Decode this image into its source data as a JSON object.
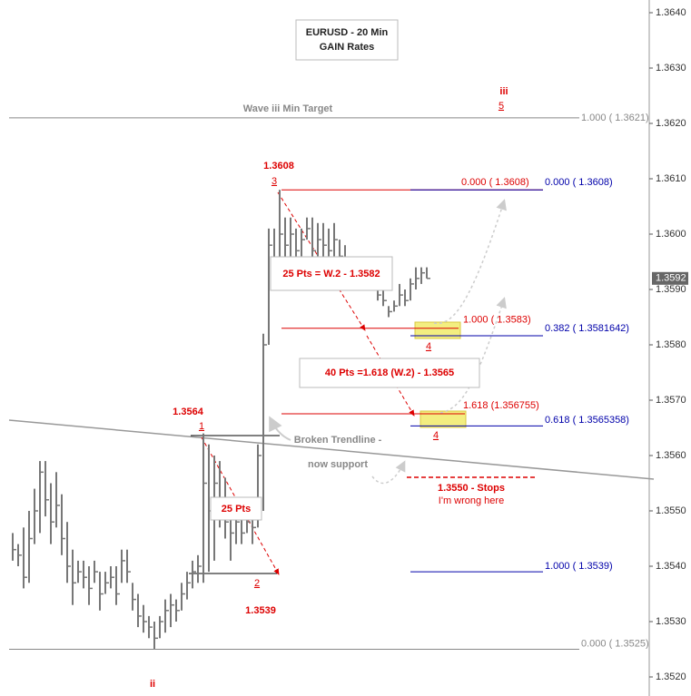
{
  "chart_data": {
    "type": "ohlc",
    "color": "#777777",
    "high": [
      1.3546,
      1.3544,
      1.3547,
      1.355,
      1.3554,
      1.3559,
      1.3559,
      1.3555,
      1.3557,
      1.3553,
      1.3548,
      1.3543,
      1.3541,
      1.3541,
      1.354,
      1.3541,
      1.3539,
      1.3539,
      1.354,
      1.354,
      1.3543,
      1.3543,
      1.3537,
      1.3535,
      1.3533,
      1.3531,
      1.353,
      1.3531,
      1.3534,
      1.3535,
      1.3534,
      1.3537,
      1.3539,
      1.3541,
      1.3542,
      1.3564,
      1.3562,
      1.356,
      1.3559,
      1.3556,
      1.3551,
      1.3551,
      1.3549,
      1.3551,
      1.3549,
      1.3562,
      1.3582,
      1.3601,
      1.3601,
      1.3608,
      1.3603,
      1.3603,
      1.3601,
      1.3601,
      1.3603,
      1.3603,
      1.3602,
      1.3602,
      1.3601,
      1.3602,
      1.3599,
      1.3598,
      null,
      null,
      null,
      null,
      null,
      1.3591,
      1.359,
      1.3587,
      1.3588,
      1.3591,
      1.359,
      1.3592,
      1.3594,
      1.3594,
      1.3594
    ],
    "low": [
      1.3541,
      1.354,
      1.3536,
      1.3537,
      1.3544,
      1.3546,
      1.3549,
      1.3544,
      1.3547,
      1.3542,
      1.3537,
      1.3533,
      1.3537,
      1.3536,
      1.3533,
      1.3537,
      1.3532,
      1.3535,
      1.3536,
      1.3533,
      1.3537,
      1.3537,
      1.3532,
      1.3529,
      1.3528,
      1.3527,
      1.3525,
      1.3527,
      1.3528,
      1.3529,
      1.353,
      1.3532,
      1.3534,
      1.3536,
      1.3537,
      1.3537,
      1.3539,
      1.3541,
      1.3547,
      1.3545,
      1.3541,
      1.3544,
      1.3544,
      1.3546,
      1.3544,
      1.3547,
      1.355,
      1.358,
      1.359,
      1.359,
      1.3595,
      1.3596,
      1.3595,
      1.3596,
      1.3599,
      1.3595,
      1.3596,
      1.3595,
      1.3596,
      1.3596,
      1.3594,
      1.3593,
      null,
      null,
      null,
      null,
      null,
      1.3588,
      1.3587,
      1.3585,
      1.3586,
      1.3587,
      1.3587,
      1.3588,
      1.359,
      1.3591,
      1.3592
    ],
    "close": [
      1.3543,
      1.3542,
      1.3538,
      1.3545,
      1.355,
      1.3557,
      1.3552,
      1.3548,
      1.3551,
      1.3545,
      1.354,
      1.3537,
      1.3539,
      1.3538,
      1.3536,
      1.3539,
      1.3535,
      1.3537,
      1.3538,
      1.3535,
      1.3541,
      1.3539,
      1.3534,
      1.3531,
      1.353,
      1.3529,
      1.3527,
      1.353,
      1.3532,
      1.3533,
      1.3532,
      1.3535,
      1.3537,
      1.3539,
      1.354,
      1.3555,
      1.355,
      1.3555,
      1.3552,
      1.3548,
      1.3546,
      1.3548,
      1.3546,
      1.3548,
      1.3547,
      1.356,
      1.358,
      1.3598,
      1.3595,
      1.36,
      1.3598,
      1.36,
      1.3597,
      1.3599,
      1.3601,
      1.3597,
      1.3599,
      1.3598,
      1.3597,
      1.3599,
      1.3596,
      1.3595,
      null,
      null,
      null,
      null,
      null,
      1.3589,
      1.3588,
      1.3586,
      1.3587,
      1.3589,
      1.3588,
      1.3591,
      1.3592,
      1.3593,
      1.3592
    ],
    "ylim": [
      1.352,
      1.364
    ],
    "yticks": [
      {
        "value": 1.352,
        "label": "1.3520"
      },
      {
        "value": 1.353,
        "label": "1.3530"
      },
      {
        "value": 1.354,
        "label": "1.3540"
      },
      {
        "value": 1.355,
        "label": "1.3550"
      },
      {
        "value": 1.356,
        "label": "1.3560"
      },
      {
        "value": 1.357,
        "label": "1.3570"
      },
      {
        "value": 1.358,
        "label": "1.3580"
      },
      {
        "value": 1.359,
        "label": "1.3590"
      },
      {
        "value": 1.36,
        "label": "1.3600"
      },
      {
        "value": 1.361,
        "label": "1.3610"
      },
      {
        "value": 1.362,
        "label": "1.3620"
      },
      {
        "value": 1.363,
        "label": "1.3630"
      },
      {
        "value": 1.364,
        "label": "1.3640"
      }
    ],
    "last_price": {
      "value": 1.3592,
      "label": "1.3592"
    },
    "levels": [
      {
        "value": 1.3621,
        "label": "1.000 ( 1.3621)",
        "color": "#888888"
      },
      {
        "value": 1.3608,
        "label": "0.000 ( 1.3608)",
        "color": "#dd0000"
      },
      {
        "value": 1.3608,
        "label": "0.000 ( 1.3608)",
        "color": "#0000aa"
      },
      {
        "value": 1.3583,
        "label": "1.000 ( 1.3583)",
        "color": "#dd0000"
      },
      {
        "value": 1.3581642,
        "label": "0.382 ( 1.3581642)",
        "color": "#0000aa"
      },
      {
        "value": 1.356755,
        "label": "1.618 (1.356755)",
        "color": "#dd0000"
      },
      {
        "value": 1.3565358,
        "label": "0.618 ( 1.3565358)",
        "color": "#0000aa"
      },
      {
        "value": 1.3539,
        "label": "1.000 ( 1.3539)",
        "color": "#0000aa"
      },
      {
        "value": 1.3525,
        "label": "0.000 ( 1.3525)",
        "color": "#888888"
      }
    ],
    "annotations": [
      "EURUSD - 20 Min",
      "GAIN Rates",
      "Wave iii Min Target",
      "iii",
      "5",
      "1.3608",
      "3",
      "1.3564",
      "1",
      "1.3539",
      "2",
      "ii",
      "4",
      "4",
      "25 Pts = W.2 - 1.3582",
      "40 Pts =1.618 (W.2) - 1.3565",
      "25 Pts",
      "Broken Trendline -",
      "now support",
      "1.3550 - Stops",
      "I'm wrong here"
    ]
  }
}
